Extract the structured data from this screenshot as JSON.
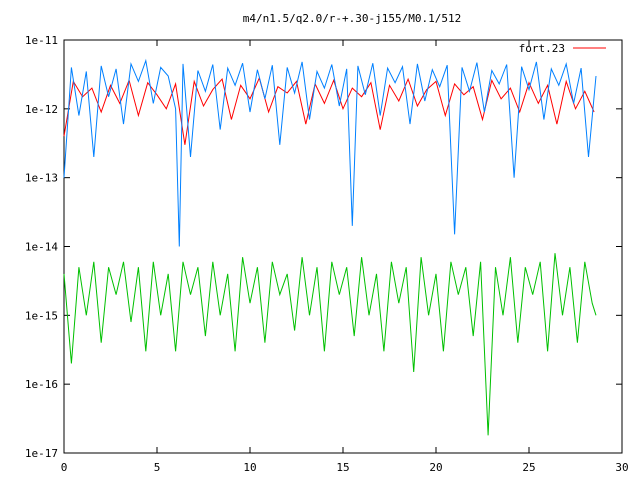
{
  "chart_data": {
    "type": "line",
    "title": "m4/n1.5/q2.0/r-+.30-j155/M0.1/512",
    "xlabel": "",
    "ylabel": "",
    "xlim": [
      0,
      30
    ],
    "ylim": [
      1e-17,
      1e-11
    ],
    "yscale": "log",
    "grid": false,
    "legend_position": "top-right",
    "x_ticks": [
      0,
      5,
      10,
      15,
      20,
      25,
      30
    ],
    "x_tick_labels": [
      "0",
      "5",
      "10",
      "15",
      "20",
      "25",
      "30"
    ],
    "y_ticks": [
      1e-17,
      1e-16,
      1e-15,
      1e-14,
      1e-13,
      1e-12,
      1e-11
    ],
    "y_tick_labels": [
      "1e-17",
      "1e-16",
      "1e-15",
      "1e-14",
      "1e-13",
      "1e-12",
      "1e-11"
    ],
    "series": [
      {
        "name": "fort.23",
        "color": "#ff0000",
        "x": [
          0.0,
          0.5,
          1.0,
          1.5,
          2.0,
          2.5,
          3.0,
          3.5,
          4.0,
          4.5,
          5.0,
          5.5,
          6.0,
          6.5,
          7.0,
          7.5,
          8.0,
          8.5,
          9.0,
          9.5,
          10.0,
          10.5,
          11.0,
          11.5,
          12.0,
          12.5,
          13.0,
          13.5,
          14.0,
          14.5,
          15.0,
          15.5,
          16.0,
          16.5,
          17.0,
          17.5,
          18.0,
          18.5,
          19.0,
          19.5,
          20.0,
          20.5,
          21.0,
          21.5,
          22.0,
          22.5,
          23.0,
          23.5,
          24.0,
          24.5,
          25.0,
          25.5,
          26.0,
          26.5,
          27.0,
          27.5,
          28.0,
          28.5
        ],
        "y": [
          4e-13,
          2.5e-12,
          1.5e-12,
          2e-12,
          9e-13,
          2.2e-12,
          1.2e-12,
          2.6e-12,
          8e-13,
          2.4e-12,
          1.6e-12,
          1e-12,
          2.3e-12,
          3e-13,
          2.5e-12,
          1.1e-12,
          1.9e-12,
          2.7e-12,
          7e-13,
          2.2e-12,
          1.4e-12,
          2.8e-12,
          9e-13,
          2.1e-12,
          1.7e-12,
          2.5e-12,
          6e-13,
          2.3e-12,
          1.2e-12,
          2.6e-12,
          1e-12,
          2e-12,
          1.5e-12,
          2.4e-12,
          5e-13,
          2.2e-12,
          1.3e-12,
          2.7e-12,
          1.1e-12,
          1.9e-12,
          2.5e-12,
          8e-13,
          2.3e-12,
          1.6e-12,
          2.1e-12,
          7e-13,
          2.6e-12,
          1.4e-12,
          2e-12,
          9e-13,
          2.4e-12,
          1.2e-12,
          2.2e-12,
          6e-13,
          2.5e-12,
          1e-12,
          1.8e-12,
          9e-13
        ]
      },
      {
        "color": "#0080ff",
        "x": [
          0.0,
          0.4,
          0.8,
          1.2,
          1.6,
          2.0,
          2.4,
          2.8,
          3.2,
          3.6,
          4.0,
          4.4,
          4.8,
          5.2,
          5.6,
          6.0,
          6.2,
          6.4,
          6.8,
          7.2,
          7.6,
          8.0,
          8.4,
          8.8,
          9.2,
          9.6,
          10.0,
          10.4,
          10.8,
          11.2,
          11.6,
          12.0,
          12.4,
          12.8,
          13.2,
          13.6,
          14.0,
          14.4,
          14.8,
          15.2,
          15.5,
          15.8,
          16.2,
          16.6,
          17.0,
          17.4,
          17.8,
          18.2,
          18.6,
          19.0,
          19.4,
          19.8,
          20.2,
          20.6,
          21.0,
          21.4,
          21.8,
          22.2,
          22.6,
          23.0,
          23.4,
          23.8,
          24.2,
          24.6,
          25.0,
          25.4,
          25.8,
          26.2,
          26.6,
          27.0,
          27.4,
          27.8,
          28.2,
          28.6
        ],
        "y": [
          1e-13,
          4e-12,
          8e-13,
          3.5e-12,
          2e-13,
          4.2e-12,
          1.5e-12,
          3.8e-12,
          6e-13,
          4.5e-12,
          2.5e-12,
          5e-12,
          1.2e-12,
          4e-12,
          3e-12,
          1e-12,
          1e-14,
          4.5e-12,
          2e-13,
          3.6e-12,
          1.8e-12,
          4.4e-12,
          5e-13,
          3.9e-12,
          2.2e-12,
          4.6e-12,
          9e-13,
          3.7e-12,
          1.4e-12,
          4.3e-12,
          3e-13,
          4e-12,
          1.7e-12,
          4.8e-12,
          7e-13,
          3.5e-12,
          2e-12,
          4.4e-12,
          1.1e-12,
          3.8e-12,
          2e-14,
          4.2e-12,
          1.6e-12,
          4.6e-12,
          8e-13,
          3.9e-12,
          2.4e-12,
          4.1e-12,
          6e-13,
          4.5e-12,
          1.3e-12,
          3.7e-12,
          2.1e-12,
          4.3e-12,
          1.5e-14,
          4e-12,
          1.8e-12,
          4.7e-12,
          9e-13,
          3.6e-12,
          2.3e-12,
          4.4e-12,
          1e-13,
          4.1e-12,
          1.9e-12,
          4.8e-12,
          7e-13,
          3.8e-12,
          2.2e-12,
          4.5e-12,
          1.2e-12,
          3.9e-12,
          2e-13,
          3e-12
        ]
      },
      {
        "color": "#00c000",
        "x": [
          0.0,
          0.4,
          0.8,
          1.2,
          1.6,
          2.0,
          2.4,
          2.8,
          3.2,
          3.6,
          4.0,
          4.4,
          4.8,
          5.2,
          5.6,
          6.0,
          6.4,
          6.8,
          7.2,
          7.6,
          8.0,
          8.4,
          8.8,
          9.2,
          9.6,
          10.0,
          10.4,
          10.8,
          11.2,
          11.6,
          12.0,
          12.4,
          12.8,
          13.2,
          13.6,
          14.0,
          14.4,
          14.8,
          15.2,
          15.6,
          16.0,
          16.4,
          16.8,
          17.2,
          17.6,
          18.0,
          18.4,
          18.8,
          19.2,
          19.6,
          20.0,
          20.4,
          20.8,
          21.2,
          21.6,
          22.0,
          22.4,
          22.8,
          23.2,
          23.6,
          24.0,
          24.4,
          24.8,
          25.2,
          25.6,
          26.0,
          26.4,
          26.8,
          27.2,
          27.6,
          28.0,
          28.4,
          28.6
        ],
        "y": [
          4e-15,
          2e-16,
          5e-15,
          1e-15,
          6e-15,
          4e-16,
          5e-15,
          2e-15,
          6e-15,
          8e-16,
          5e-15,
          3e-16,
          6e-15,
          1e-15,
          4e-15,
          3e-16,
          6e-15,
          2e-15,
          5e-15,
          5e-16,
          6e-15,
          1e-15,
          4e-15,
          3e-16,
          7e-15,
          1.5e-15,
          5e-15,
          4e-16,
          6e-15,
          2e-15,
          4e-15,
          6e-16,
          7e-15,
          1e-15,
          5e-15,
          3e-16,
          6e-15,
          2e-15,
          5e-15,
          5e-16,
          7e-15,
          1e-15,
          4e-15,
          3e-16,
          6e-15,
          1.5e-15,
          5e-15,
          1.5e-16,
          7e-15,
          1e-15,
          4e-15,
          3e-16,
          6e-15,
          2e-15,
          5e-15,
          5e-16,
          6e-15,
          1.8e-17,
          5e-15,
          1e-15,
          7e-15,
          4e-16,
          5e-15,
          2e-15,
          6e-15,
          3e-16,
          8e-15,
          1e-15,
          5e-15,
          4e-16,
          6e-15,
          1.5e-15,
          1e-15
        ]
      }
    ]
  }
}
